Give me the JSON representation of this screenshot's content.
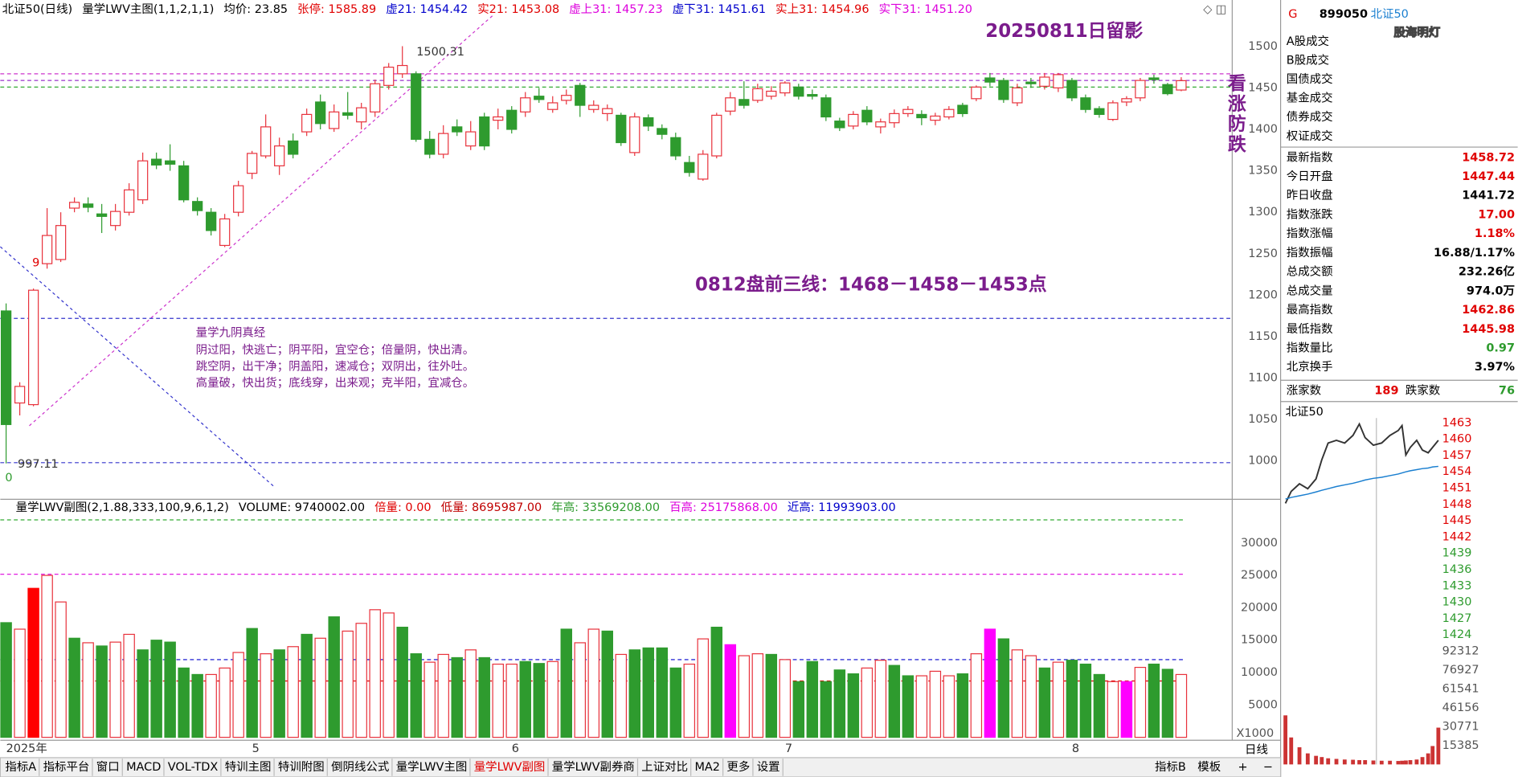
{
  "header": [
    {
      "text": "北证50(日线)",
      "color": "#000000"
    },
    {
      "text": "量学LWV主图(1,1,2,1,1)",
      "color": "#000000"
    },
    {
      "text": "均价: 23.85",
      "color": "#000000"
    },
    {
      "text": "张停: 1585.89",
      "color": "#e00000"
    },
    {
      "text": "虚21: 1454.42",
      "color": "#0000cc"
    },
    {
      "text": "实21: 1453.08",
      "color": "#e00000"
    },
    {
      "text": "虚上31: 1457.23",
      "color": "#dd00dd"
    },
    {
      "text": "虚下31: 1451.61",
      "color": "#0000cc"
    },
    {
      "text": "实上31: 1454.96",
      "color": "#e00000"
    },
    {
      "text": "实下31: 1451.20",
      "color": "#dd00dd"
    }
  ],
  "volume_header": [
    {
      "text": "量学LWV副图(2,1.88,333,100,9,6,1,2)",
      "color": "#000000"
    },
    {
      "text": "VOLUME: 9740002.00",
      "color": "#000000"
    },
    {
      "text": "倍量: 0.00",
      "color": "#e00000"
    },
    {
      "text": "低量: 8695987.00",
      "color": "#c00000"
    },
    {
      "text": "年高: 33569208.00",
      "color": "#2e9b2e"
    },
    {
      "text": "百高: 25175868.00",
      "color": "#dd00dd"
    },
    {
      "text": "近高: 11993903.00",
      "color": "#0000cc"
    }
  ],
  "annotations": {
    "date_note": {
      "text": "20250811日留影",
      "color": "#7b1c8c"
    },
    "vertical_note": {
      "text": "看涨防跌",
      "color": "#7b1c8c"
    },
    "three_lines": {
      "text": "0812盘前三线：1468－1458－1453点",
      "color": "#7b1c8c"
    },
    "scripture_title": {
      "text": "量学九阴真经",
      "color": "#7b1c8c"
    },
    "scripture_lines": [
      "阴过阳，快逃亡；阴平阳，宜空仓；倍量阴，快出清。",
      "跳空阴，出干净；阴盖阳，速减仓；双阴出，往外吐。",
      "高量破，快出货；底线穿，出来观；克半阳，宜减仓。"
    ],
    "high_label": "1500.31",
    "low_label": "997.11",
    "count_label": "9",
    "zero_label": "0",
    "watermark": "股海明灯"
  },
  "chart_data": [
    {
      "type": "candlestick",
      "ylim": [
        955,
        1535
      ],
      "yticks": [
        1000,
        1050,
        1100,
        1150,
        1200,
        1250,
        1300,
        1350,
        1400,
        1450,
        1500
      ],
      "up_color": "#e8323c",
      "down_color": "#2e9b2e",
      "categories": [
        "2025年",
        null,
        null,
        null,
        null,
        null,
        null,
        null,
        null,
        null,
        null,
        null,
        null,
        null,
        null,
        null,
        null,
        null,
        "5",
        null,
        null,
        null,
        null,
        null,
        null,
        null,
        null,
        null,
        null,
        null,
        null,
        null,
        null,
        null,
        null,
        null,
        null,
        "6",
        null,
        null,
        null,
        null,
        null,
        null,
        null,
        null,
        null,
        null,
        null,
        null,
        null,
        null,
        null,
        null,
        null,
        null,
        null,
        "7",
        null,
        null,
        null,
        null,
        null,
        null,
        null,
        null,
        null,
        null,
        null,
        null,
        null,
        null,
        null,
        null,
        null,
        null,
        null,
        null,
        "8",
        null,
        null,
        null,
        null,
        null,
        null
      ],
      "candles": [
        [
          1181,
          1190,
          997.11,
          1044
        ],
        [
          1070,
          1095,
          1055,
          1090
        ],
        [
          1068,
          1208,
          1066,
          1206
        ],
        [
          1238,
          1305,
          1232,
          1272
        ],
        [
          1243,
          1300,
          1240,
          1284
        ],
        [
          1305,
          1318,
          1300,
          1312
        ],
        [
          1310,
          1318,
          1300,
          1306
        ],
        [
          1298,
          1310,
          1275,
          1295
        ],
        [
          1284,
          1310,
          1278,
          1301
        ],
        [
          1300,
          1335,
          1296,
          1327
        ],
        [
          1315,
          1372,
          1310,
          1362
        ],
        [
          1364,
          1372,
          1352,
          1357
        ],
        [
          1362,
          1382,
          1350,
          1358
        ],
        [
          1356,
          1362,
          1312,
          1315
        ],
        [
          1313,
          1318,
          1296,
          1302
        ],
        [
          1300,
          1305,
          1272,
          1278
        ],
        [
          1260,
          1298,
          1258,
          1292
        ],
        [
          1300,
          1338,
          1295,
          1332
        ],
        [
          1347,
          1374,
          1340,
          1371
        ],
        [
          1368,
          1418,
          1365,
          1403
        ],
        [
          1356,
          1390,
          1345,
          1380
        ],
        [
          1386,
          1395,
          1365,
          1370
        ],
        [
          1397,
          1425,
          1392,
          1418
        ],
        [
          1433,
          1442,
          1400,
          1407
        ],
        [
          1401,
          1430,
          1397,
          1421
        ],
        [
          1420,
          1445,
          1412,
          1417
        ],
        [
          1409,
          1432,
          1400,
          1426
        ],
        [
          1421,
          1460,
          1415,
          1455
        ],
        [
          1453,
          1480,
          1448,
          1475
        ],
        [
          1467,
          1500.31,
          1462,
          1477
        ],
        [
          1467,
          1470,
          1385,
          1388
        ],
        [
          1388,
          1398,
          1365,
          1370
        ],
        [
          1370,
          1405,
          1365,
          1395
        ],
        [
          1403,
          1412,
          1392,
          1397
        ],
        [
          1380,
          1410,
          1375,
          1397
        ],
        [
          1415,
          1420,
          1375,
          1380
        ],
        [
          1411,
          1425,
          1400,
          1415
        ],
        [
          1423,
          1428,
          1395,
          1400
        ],
        [
          1421,
          1445,
          1415,
          1438
        ],
        [
          1440,
          1450,
          1432,
          1436
        ],
        [
          1424,
          1440,
          1420,
          1432
        ],
        [
          1435,
          1448,
          1430,
          1441
        ],
        [
          1453,
          1456,
          1415,
          1429
        ],
        [
          1424,
          1435,
          1420,
          1429
        ],
        [
          1419,
          1430,
          1410,
          1425
        ],
        [
          1417,
          1420,
          1380,
          1384
        ],
        [
          1372,
          1420,
          1368,
          1415
        ],
        [
          1414,
          1418,
          1398,
          1404
        ],
        [
          1401,
          1406,
          1388,
          1394
        ],
        [
          1390,
          1396,
          1363,
          1368
        ],
        [
          1360,
          1368,
          1343,
          1348
        ],
        [
          1340,
          1375,
          1338,
          1370
        ],
        [
          1368,
          1420,
          1365,
          1417
        ],
        [
          1422,
          1445,
          1417,
          1438
        ],
        [
          1436,
          1458,
          1425,
          1429
        ],
        [
          1435,
          1455,
          1432,
          1449
        ],
        [
          1440,
          1452,
          1436,
          1446
        ],
        [
          1444,
          1458,
          1440,
          1456
        ],
        [
          1451,
          1455,
          1436,
          1440
        ],
        [
          1442,
          1448,
          1436,
          1440
        ],
        [
          1438,
          1442,
          1410,
          1415
        ],
        [
          1410,
          1414,
          1398,
          1402
        ],
        [
          1404,
          1422,
          1400,
          1418
        ],
        [
          1423,
          1428,
          1405,
          1409
        ],
        [
          1403,
          1413,
          1395,
          1409
        ],
        [
          1408,
          1424,
          1402,
          1419
        ],
        [
          1419,
          1428,
          1415,
          1424
        ],
        [
          1418,
          1423,
          1405,
          1414
        ],
        [
          1411,
          1420,
          1405,
          1416
        ],
        [
          1415,
          1428,
          1412,
          1424
        ],
        [
          1429,
          1432,
          1415,
          1419
        ],
        [
          1437,
          1453,
          1434,
          1451
        ],
        [
          1462,
          1468,
          1452,
          1457
        ],
        [
          1459,
          1462,
          1432,
          1436
        ],
        [
          1432,
          1455,
          1428,
          1450
        ],
        [
          1457,
          1462,
          1450,
          1455
        ],
        [
          1452,
          1468,
          1448,
          1463
        ],
        [
          1450,
          1468,
          1445,
          1466
        ],
        [
          1459,
          1462,
          1434,
          1438
        ],
        [
          1438,
          1442,
          1420,
          1424
        ],
        [
          1425,
          1428,
          1414,
          1418
        ],
        [
          1412,
          1435,
          1410,
          1432
        ],
        [
          1433,
          1440,
          1428,
          1437
        ],
        [
          1438,
          1462,
          1434,
          1459
        ],
        [
          1462,
          1466,
          1455,
          1460
        ],
        [
          1454,
          1456,
          1441,
          1443
        ],
        [
          1447.44,
          1462.86,
          1445.98,
          1458.72
        ]
      ],
      "hlines": [
        {
          "value": 1467,
          "color": "#cc33cc"
        },
        {
          "value": 1459,
          "color": "#9933cc"
        },
        {
          "value": 1451,
          "color": "#33aa33"
        },
        {
          "value": 1172,
          "color": "#3333cc"
        },
        {
          "value": 998,
          "color": "#3333cc"
        }
      ]
    },
    {
      "type": "bar",
      "ylim": [
        0,
        36600
      ],
      "yticks": [
        5000,
        10000,
        15000,
        20000,
        25000,
        30000
      ],
      "unit_label": "X1000",
      "hollow_color": "#e8323c",
      "values": [
        17700,
        16700,
        23000,
        25000,
        20900,
        15300,
        14600,
        14100,
        14700,
        15900,
        13500,
        15000,
        14700,
        10700,
        9700,
        9700,
        10700,
        13100,
        16800,
        12900,
        13500,
        14000,
        15900,
        15300,
        18600,
        16400,
        17600,
        19700,
        19200,
        17000,
        12900,
        11600,
        12800,
        12300,
        13500,
        12300,
        11300,
        11300,
        11700,
        11400,
        11700,
        16700,
        14600,
        16700,
        16400,
        12800,
        13500,
        13800,
        13800,
        10700,
        11300,
        15200,
        17000,
        14300,
        12600,
        12900,
        12800,
        12000,
        8600,
        11700,
        8600,
        10400,
        9800,
        10700,
        11900,
        11100,
        9500,
        9500,
        10200,
        9500,
        9800,
        12900,
        16700,
        15200,
        13500,
        12600,
        10700,
        11600,
        11900,
        11300,
        9700,
        8600,
        8600,
        10800,
        11300,
        10500,
        9700
      ],
      "colors": [
        "#2e9b2e",
        "#e8323c",
        "#ff0000",
        "#e8323c",
        "#e8323c",
        "#2e9b2e",
        "#e8323c",
        "#2e9b2e",
        "#e8323c",
        "#e8323c",
        "#2e9b2e",
        "#2e9b2e",
        "#2e9b2e",
        "#2e9b2e",
        "#2e9b2e",
        "#e8323c",
        "#e8323c",
        "#e8323c",
        "#2e9b2e",
        "#e8323c",
        "#2e9b2e",
        "#e8323c",
        "#2e9b2e",
        "#e8323c",
        "#2e9b2e",
        "#e8323c",
        "#e8323c",
        "#e8323c",
        "#e8323c",
        "#2e9b2e",
        "#2e9b2e",
        "#e8323c",
        "#e8323c",
        "#2e9b2e",
        "#e8323c",
        "#2e9b2e",
        "#e8323c",
        "#e8323c",
        "#2e9b2e",
        "#2e9b2e",
        "#e8323c",
        "#2e9b2e",
        "#e8323c",
        "#e8323c",
        "#2e9b2e",
        "#e8323c",
        "#2e9b2e",
        "#2e9b2e",
        "#2e9b2e",
        "#2e9b2e",
        "#e8323c",
        "#e8323c",
        "#2e9b2e",
        "#ff00ff",
        "#e8323c",
        "#e8323c",
        "#2e9b2e",
        "#e8323c",
        "#2e9b2e",
        "#2e9b2e",
        "#2e9b2e",
        "#2e9b2e",
        "#2e9b2e",
        "#e8323c",
        "#e8323c",
        "#2e9b2e",
        "#2e9b2e",
        "#e8323c",
        "#e8323c",
        "#e8323c",
        "#2e9b2e",
        "#e8323c",
        "#ff00ff",
        "#2e9b2e",
        "#e8323c",
        "#e8323c",
        "#2e9b2e",
        "#e8323c",
        "#2e9b2e",
        "#2e9b2e",
        "#2e9b2e",
        "#e8323c",
        "#ff00ff",
        "#e8323c",
        "#2e9b2e",
        "#2e9b2e",
        "#e8323c"
      ],
      "hlines": [
        {
          "value": 33569.208,
          "color": "#33aa33"
        },
        {
          "value": 25175.868,
          "color": "#dd00dd"
        },
        {
          "value": 11993.903,
          "color": "#0000cc"
        },
        {
          "value": 8695.987,
          "color": "#e00000"
        }
      ]
    },
    {
      "type": "line",
      "title": "北证50",
      "xlim": [
        0,
        240
      ],
      "ylim": [
        1421.9,
        1463.9
      ],
      "yticks": [
        1463,
        1460,
        1457,
        1454,
        1451,
        1448,
        1445,
        1442,
        1439,
        1436,
        1433,
        1430,
        1427,
        1424
      ],
      "x": [
        0,
        9,
        22,
        35,
        48,
        57,
        67,
        80,
        93,
        106,
        116,
        125,
        138,
        151,
        164,
        177,
        183,
        189,
        196,
        206,
        215,
        224,
        231,
        240
      ],
      "series": [
        {
          "color": "#333333",
          "values": [
            1448.2,
            1450.4,
            1451.8,
            1450.9,
            1452.7,
            1456.2,
            1459.3,
            1459.8,
            1459.3,
            1460.7,
            1462.8,
            1460.3,
            1458.9,
            1459.3,
            1460.7,
            1461.6,
            1462.5,
            1457.1,
            1458.5,
            1459.8,
            1458.0,
            1457.5,
            1458.5,
            1459.8
          ]
        },
        {
          "color": "#1a7fd0",
          "values": [
            1449,
            1449.3,
            1449.6,
            1449.9,
            1450.3,
            1450.6,
            1450.9,
            1451.3,
            1451.6,
            1451.9,
            1452.2,
            1452.5,
            1452.8,
            1453,
            1453.3,
            1453.6,
            1453.8,
            1454,
            1454.2,
            1454.4,
            1454.6,
            1454.7,
            1454.9,
            1455
          ]
        }
      ],
      "y2lim": [
        0,
        92312
      ],
      "y2ticks": [
        92312,
        76927,
        61541,
        46156,
        30771,
        15385
      ],
      "volume": [
        40000,
        22000,
        14000,
        9000,
        7000,
        6000,
        5000,
        4500,
        4000,
        3800,
        3500,
        3500,
        3200,
        3000,
        3000,
        2800,
        3000,
        3200,
        3500,
        4000,
        6000,
        9000,
        15000,
        30000
      ],
      "volume_color": "#cc3333"
    }
  ],
  "side_panel": {
    "code_prefix": "G",
    "code": "899050",
    "name": "北证50",
    "trades": [
      "A股成交",
      "B股成交",
      "国债成交",
      "基金成交",
      "债券成交",
      "权证成交"
    ],
    "stats": [
      {
        "label": "最新指数",
        "value": "1458.72",
        "color": "#e00000"
      },
      {
        "label": "今日开盘",
        "value": "1447.44",
        "color": "#e00000"
      },
      {
        "label": "昨日收盘",
        "value": "1441.72",
        "color": "#000000"
      },
      {
        "label": "指数涨跌",
        "value": "17.00",
        "color": "#e00000"
      },
      {
        "label": "指数涨幅",
        "value": "1.18%",
        "color": "#e00000"
      },
      {
        "label": "指数振幅",
        "value": "16.88/1.17%",
        "color": "#000000"
      },
      {
        "label": "总成交额",
        "value": "232.26亿",
        "color": "#000000"
      },
      {
        "label": "总成交量",
        "value": "974.0万",
        "color": "#000000"
      },
      {
        "label": "最高指数",
        "value": "1462.86",
        "color": "#e00000"
      },
      {
        "label": "最低指数",
        "value": "1445.98",
        "color": "#e00000"
      },
      {
        "label": "指数量比",
        "value": "0.97",
        "color": "#2e9b2e"
      },
      {
        "label": "北京换手",
        "value": "3.97%",
        "color": "#000000"
      }
    ],
    "advancers_label": "涨家数",
    "advancers": "189",
    "decliners_label": "跌家数",
    "decliners": "76",
    "period": "日线"
  },
  "tabs": {
    "left": [
      "指标A",
      "指标平台",
      "窗口",
      "MACD",
      "VOL-TDX",
      "特训主图",
      "特训附图",
      "倒阴线公式",
      "量学LWV主图",
      "量学LWV副图",
      "量学LWV副券商",
      "上证对比",
      "MA2",
      "更多",
      "设置"
    ],
    "active": "量学LWV副图",
    "right": [
      "指标B",
      "模板"
    ],
    "controls": [
      "+",
      "−"
    ]
  }
}
